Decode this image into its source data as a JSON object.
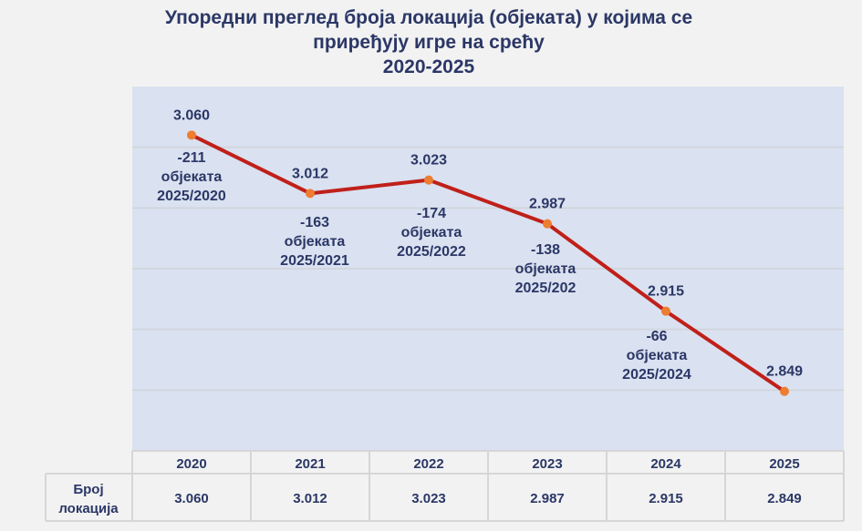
{
  "chart_data": {
    "type": "line",
    "title_lines": [
      "Упоредни преглед броја локација (објеката) у којима се",
      "приређују игре на срећу",
      "2020-2025"
    ],
    "categories": [
      "2020",
      "2021",
      "2022",
      "2023",
      "2024",
      "2025"
    ],
    "series": [
      {
        "name": "Број локација",
        "values": [
          3060,
          3012,
          3023,
          2987,
          2915,
          2849
        ]
      }
    ],
    "value_labels": [
      "3.060",
      "3.012",
      "3.023",
      "2.987",
      "2.915",
      "2.849"
    ],
    "annotations": [
      {
        "category": "2020",
        "lines": [
          "-211",
          "објеката",
          "2025/2020"
        ]
      },
      {
        "category": "2021",
        "lines": [
          "-163",
          "објеката",
          "2025/2021"
        ]
      },
      {
        "category": "2022",
        "lines": [
          "-174",
          "објеката",
          "2025/2022"
        ]
      },
      {
        "category": "2023",
        "lines": [
          "-138",
          "објеката",
          "2025/202"
        ]
      },
      {
        "category": "2024",
        "lines": [
          "-66",
          "објеката",
          "2025/2024"
        ]
      }
    ],
    "table": {
      "row_label_lines": [
        "Број",
        "локација"
      ],
      "values": [
        "3.060",
        "3.012",
        "3.023",
        "2.987",
        "2.915",
        "2.849"
      ]
    },
    "ylim": [
      2800,
      3100
    ],
    "grid_step": 50,
    "grid": true,
    "legend": "none",
    "colors": {
      "line": "#c0201a",
      "marker": "#ed7d31",
      "plot_bg": "#dae1f0",
      "text": "#2b3766"
    }
  }
}
